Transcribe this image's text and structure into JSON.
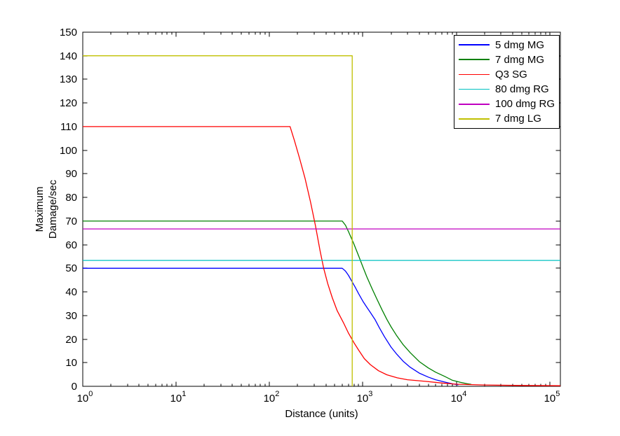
{
  "figure": {
    "background": "#ffffff",
    "title": ""
  },
  "chart_data": {
    "type": "line",
    "title": "",
    "xlabel": "Distance (units)",
    "ylabel": "Maximum Damage/sec",
    "ylabel_lines": [
      "Maximum",
      "Damage/sec"
    ],
    "x_scale": "log",
    "xlim": [
      1,
      130000
    ],
    "ylim": [
      0,
      150
    ],
    "x_tick_exponents": [
      0,
      1,
      2,
      3,
      4,
      5
    ],
    "y_ticks": [
      0,
      10,
      20,
      30,
      40,
      50,
      60,
      70,
      80,
      90,
      100,
      110,
      120,
      130,
      140,
      150
    ],
    "grid": false,
    "axis_color": "#000000",
    "legend": {
      "position": "top-right",
      "border_color": "#000000",
      "background": "#ffffff"
    },
    "series": [
      {
        "name": "5 dmg MG",
        "color": "#0000ff",
        "points": [
          [
            1,
            50
          ],
          [
            600,
            50
          ],
          [
            650,
            48.8
          ],
          [
            700,
            47
          ],
          [
            760,
            44.5
          ],
          [
            820,
            42.2
          ],
          [
            900,
            39.2
          ],
          [
            1000,
            36
          ],
          [
            1100,
            33.5
          ],
          [
            1200,
            31.3
          ],
          [
            1350,
            28.2
          ],
          [
            1500,
            24.8
          ],
          [
            1700,
            21
          ],
          [
            2000,
            16.6
          ],
          [
            2300,
            13.6
          ],
          [
            2700,
            10.6
          ],
          [
            3200,
            8.1
          ],
          [
            4000,
            5.6
          ],
          [
            5000,
            3.9
          ],
          [
            6000,
            2.8
          ],
          [
            7500,
            1.8
          ],
          [
            9000,
            1.1
          ],
          [
            10500,
            0.6
          ]
        ]
      },
      {
        "name": "7 dmg MG",
        "color": "#008000",
        "points": [
          [
            1,
            70
          ],
          [
            600,
            70
          ],
          [
            650,
            68.2
          ],
          [
            700,
            65.5
          ],
          [
            800,
            60.3
          ],
          [
            900,
            55.2
          ],
          [
            1000,
            50.5
          ],
          [
            1100,
            46.4
          ],
          [
            1250,
            41.4
          ],
          [
            1400,
            37.2
          ],
          [
            1600,
            32.4
          ],
          [
            1800,
            28.4
          ],
          [
            2000,
            25.2
          ],
          [
            2300,
            21.4
          ],
          [
            2700,
            17.6
          ],
          [
            3200,
            14.3
          ],
          [
            4000,
            10.5
          ],
          [
            5000,
            7.8
          ],
          [
            6000,
            6
          ],
          [
            7500,
            4.2
          ],
          [
            9000,
            2.6
          ],
          [
            11000,
            1.7
          ],
          [
            13000,
            1.1
          ],
          [
            14500,
            0.8
          ]
        ]
      },
      {
        "name": "Q3 SG",
        "color": "#ff0000",
        "points": [
          [
            1,
            110
          ],
          [
            166,
            110
          ],
          [
            185,
            104
          ],
          [
            210,
            96.5
          ],
          [
            240,
            88
          ],
          [
            275,
            78
          ],
          [
            310,
            68
          ],
          [
            347,
            57.5
          ],
          [
            380,
            50
          ],
          [
            420,
            43.5
          ],
          [
            470,
            37.5
          ],
          [
            530,
            32
          ],
          [
            617,
            27
          ],
          [
            700,
            22.5
          ],
          [
            800,
            18.5
          ],
          [
            900,
            15.3
          ],
          [
            1035,
            11.7
          ],
          [
            1200,
            9.2
          ],
          [
            1465,
            6.6
          ],
          [
            1800,
            4.9
          ],
          [
            2330,
            3.6
          ],
          [
            3000,
            2.8
          ],
          [
            4650,
            2.1
          ],
          [
            7000,
            1.4
          ],
          [
            10000,
            0.9
          ],
          [
            20000,
            0.55
          ],
          [
            50000,
            0.35
          ],
          [
            130000,
            0.25
          ]
        ]
      },
      {
        "name": "80 dmg RG",
        "color": "#00c0c0",
        "points": [
          [
            1,
            53.33
          ],
          [
            130000,
            53.33
          ]
        ]
      },
      {
        "name": "100 dmg RG",
        "color": "#c000c0",
        "points": [
          [
            1,
            66.67
          ],
          [
            130000,
            66.67
          ]
        ]
      },
      {
        "name": "7 dmg LG",
        "color": "#c0c000",
        "points": [
          [
            1,
            140
          ],
          [
            768,
            140
          ],
          [
            768,
            0
          ]
        ]
      }
    ]
  }
}
